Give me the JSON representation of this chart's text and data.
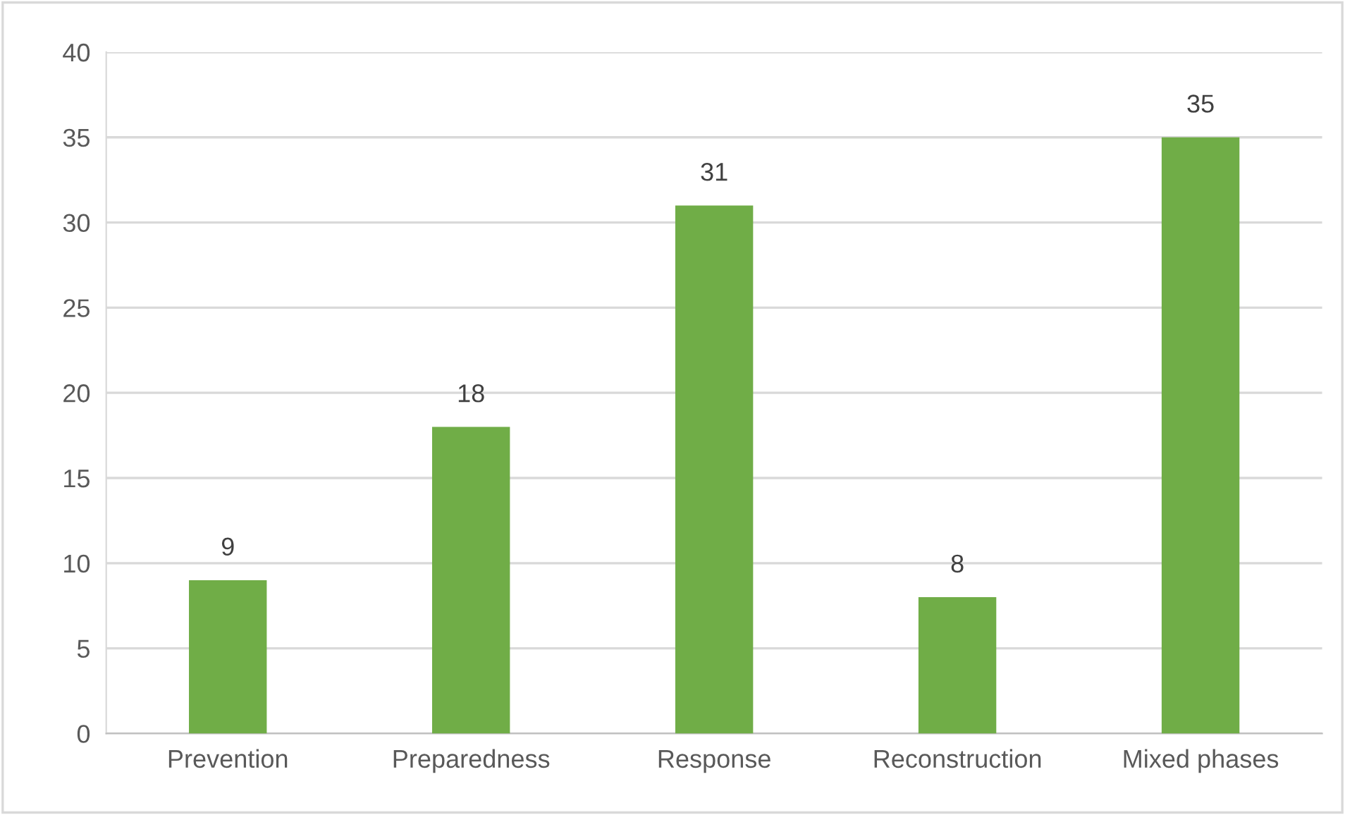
{
  "chart_data": {
    "type": "bar",
    "categories": [
      "Prevention",
      "Preparedness",
      "Response",
      "Reconstruction",
      "Mixed phases"
    ],
    "values": [
      9,
      18,
      31,
      8,
      35
    ],
    "color": "#70ad47",
    "ylim": [
      0,
      40
    ],
    "yticks": [
      0,
      5,
      10,
      15,
      20,
      25,
      30,
      35,
      40
    ],
    "grid": "y",
    "data_labels": true,
    "legend": false
  }
}
